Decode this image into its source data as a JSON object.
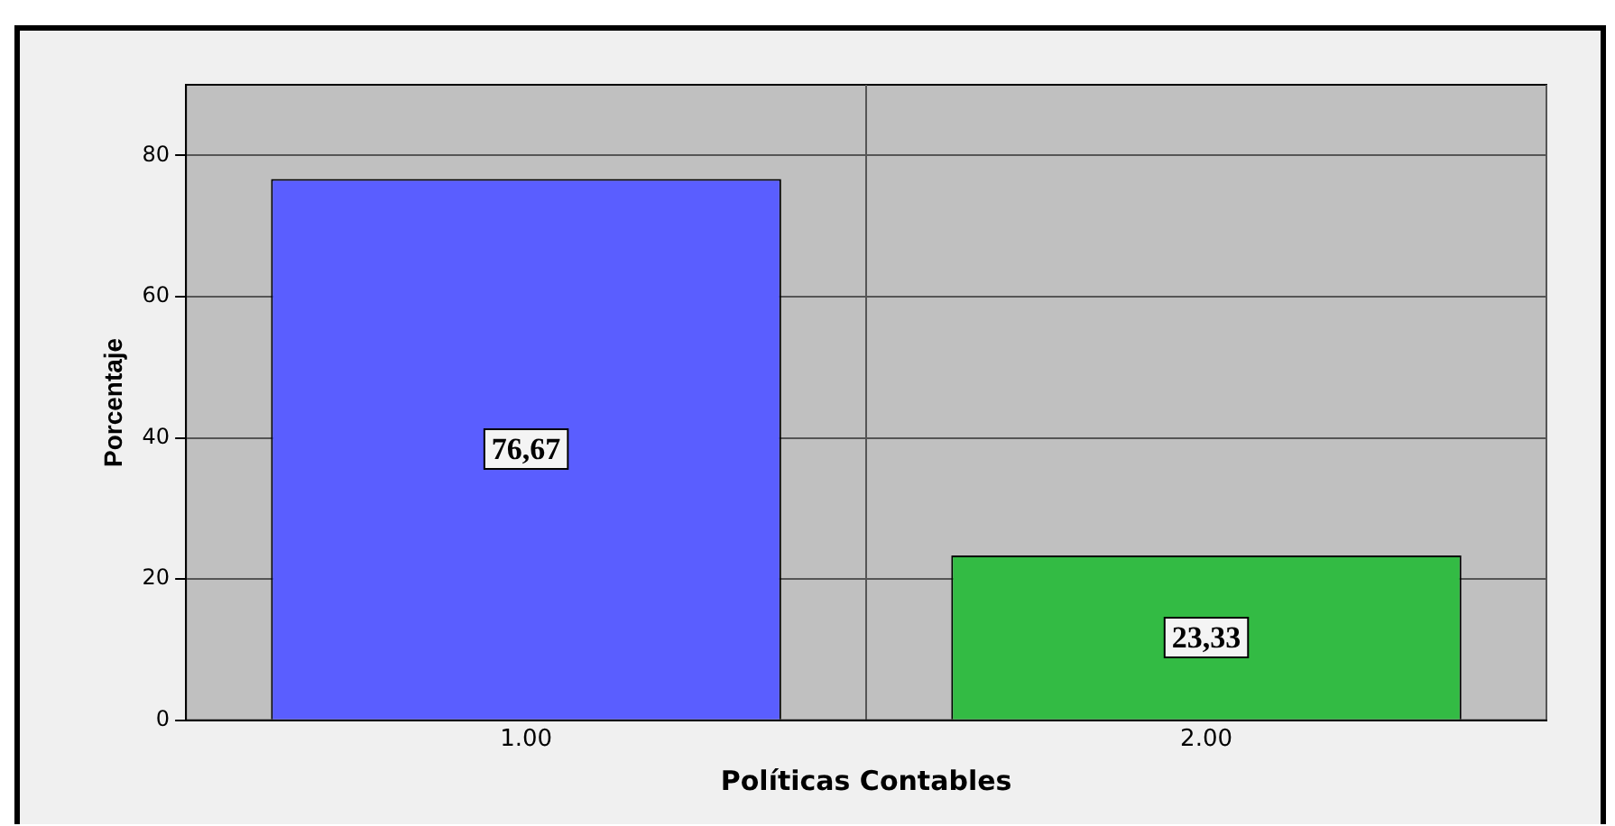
{
  "chart_data": {
    "type": "bar",
    "xlabel": "Políticas Contables",
    "ylabel": "Porcentaje",
    "categories": [
      "1.00",
      "2.00"
    ],
    "values": [
      76.67,
      23.33
    ],
    "colors": [
      "#5a5eff",
      "#33bb44"
    ],
    "value_labels": [
      "76,67",
      "23,33"
    ],
    "ylim": [
      0,
      90
    ],
    "yticks": [
      0,
      20,
      40,
      60,
      80
    ],
    "grid": true,
    "legend": false
  }
}
